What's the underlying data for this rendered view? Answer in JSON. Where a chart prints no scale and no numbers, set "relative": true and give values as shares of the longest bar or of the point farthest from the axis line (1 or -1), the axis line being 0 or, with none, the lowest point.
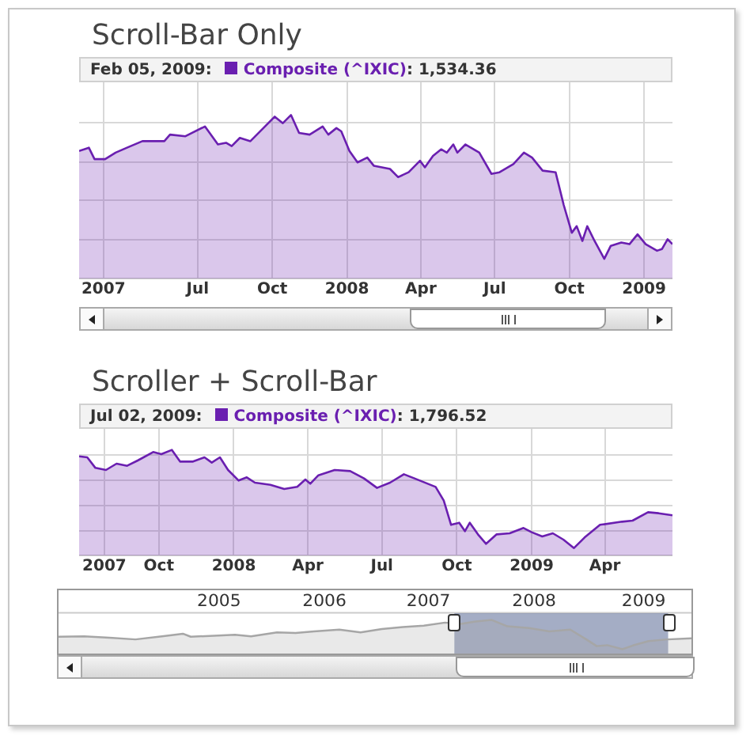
{
  "chart_data": [
    {
      "type": "area",
      "title": "Scroll-Bar Only",
      "relative": true,
      "grid": true,
      "legend": "top",
      "annotations": [
        "Feb 05, 2009:",
        ": 1,534.36"
      ],
      "xlim": [
        "2007-02-05",
        "2009-02-05"
      ],
      "xticks": [
        {
          "value": "2007-03-07",
          "label": "2007"
        },
        {
          "value": "2007-07-01",
          "label": "Jul"
        },
        {
          "value": "2007-10-01",
          "label": "Oct"
        },
        {
          "value": "2008-01-01",
          "label": "2008"
        },
        {
          "value": "2008-04-01",
          "label": "Apr"
        },
        {
          "value": "2008-07-01",
          "label": "Jul"
        },
        {
          "value": "2008-10-01",
          "label": "Oct"
        },
        {
          "value": "2009-01-01",
          "label": "2009"
        }
      ],
      "series": [
        {
          "name": "Composite (^IXIC)",
          "color": "#6a1fb0",
          "x": [
            "2007-02-05",
            "2007-02-17",
            "2007-02-24",
            "2007-03-09",
            "2007-03-22",
            "2007-04-05",
            "2007-04-24",
            "2007-05-21",
            "2007-05-28",
            "2007-06-16",
            "2007-07-10",
            "2007-07-26",
            "2007-08-05",
            "2007-08-12",
            "2007-08-22",
            "2007-09-04",
            "2007-09-20",
            "2007-10-04",
            "2007-10-14",
            "2007-10-24",
            "2007-11-03",
            "2007-11-16",
            "2007-12-02",
            "2007-12-09",
            "2007-12-19",
            "2007-12-25",
            "2008-01-04",
            "2008-01-14",
            "2008-01-26",
            "2008-02-03",
            "2008-02-23",
            "2008-03-04",
            "2008-03-17",
            "2008-03-31",
            "2008-04-06",
            "2008-04-16",
            "2008-04-26",
            "2008-05-03",
            "2008-05-11",
            "2008-05-16",
            "2008-05-26",
            "2008-06-12",
            "2008-06-27",
            "2008-07-07",
            "2008-07-24",
            "2008-08-06",
            "2008-08-16",
            "2008-08-29",
            "2008-09-14",
            "2008-09-24",
            "2008-10-04",
            "2008-10-10",
            "2008-10-17",
            "2008-10-23",
            "2008-11-01",
            "2008-11-13",
            "2008-11-21",
            "2008-12-04",
            "2008-12-14",
            "2008-12-24",
            "2009-01-03",
            "2009-01-17",
            "2009-01-23",
            "2009-01-30",
            "2009-02-05"
          ],
          "values": [
            0.78,
            0.8,
            0.73,
            0.73,
            0.77,
            0.8,
            0.84,
            0.84,
            0.88,
            0.87,
            0.93,
            0.82,
            0.83,
            0.81,
            0.86,
            0.84,
            0.92,
            0.99,
            0.95,
            1.0,
            0.89,
            0.88,
            0.93,
            0.88,
            0.92,
            0.9,
            0.78,
            0.71,
            0.74,
            0.69,
            0.67,
            0.62,
            0.65,
            0.72,
            0.68,
            0.75,
            0.79,
            0.77,
            0.82,
            0.77,
            0.82,
            0.77,
            0.64,
            0.65,
            0.7,
            0.77,
            0.74,
            0.66,
            0.65,
            0.45,
            0.28,
            0.32,
            0.23,
            0.32,
            0.23,
            0.12,
            0.2,
            0.22,
            0.21,
            0.27,
            0.21,
            0.17,
            0.18,
            0.24,
            0.21
          ]
        }
      ]
    },
    {
      "type": "area",
      "title": "Scroller + Scroll-Bar",
      "relative": true,
      "grid": true,
      "legend": "top",
      "annotations": [
        "Jul 02, 2009:",
        ": 1,796.52"
      ],
      "xlim": [
        "2007-06-25",
        "2009-06-23"
      ],
      "xticks": [
        {
          "value": "2007-07-26",
          "label": "2007"
        },
        {
          "value": "2007-10-01",
          "label": "Oct"
        },
        {
          "value": "2008-01-01",
          "label": "2008"
        },
        {
          "value": "2008-04-01",
          "label": "Apr"
        },
        {
          "value": "2008-07-01",
          "label": "Jul"
        },
        {
          "value": "2008-10-01",
          "label": "Oct"
        },
        {
          "value": "2009-01-01",
          "label": "2009"
        },
        {
          "value": "2009-04-01",
          "label": "Apr"
        }
      ],
      "series": [
        {
          "name": "Composite (^IXIC)",
          "color": "#6a1fb0",
          "x": [
            "2007-06-25",
            "2007-07-05",
            "2007-07-15",
            "2007-07-28",
            "2007-08-10",
            "2007-08-23",
            "2007-09-05",
            "2007-09-24",
            "2007-10-04",
            "2007-10-17",
            "2007-10-27",
            "2007-11-12",
            "2007-11-26",
            "2007-12-05",
            "2007-12-15",
            "2007-12-25",
            "2008-01-07",
            "2008-01-17",
            "2008-01-27",
            "2008-02-15",
            "2008-03-03",
            "2008-03-19",
            "2008-03-29",
            "2008-04-04",
            "2008-04-14",
            "2008-05-04",
            "2008-05-23",
            "2008-06-09",
            "2008-06-25",
            "2008-07-11",
            "2008-07-28",
            "2008-08-10",
            "2008-09-05",
            "2008-09-15",
            "2008-09-24",
            "2008-10-04",
            "2008-10-11",
            "2008-10-17",
            "2008-10-27",
            "2008-11-06",
            "2008-11-19",
            "2008-12-05",
            "2008-12-22",
            "2009-01-01",
            "2009-01-14",
            "2009-01-27",
            "2009-02-09",
            "2009-02-22",
            "2009-03-07",
            "2009-03-26",
            "2009-04-22",
            "2009-05-05",
            "2009-05-24",
            "2009-06-06",
            "2009-06-23"
          ],
          "values": [
            0.94,
            0.93,
            0.83,
            0.81,
            0.87,
            0.85,
            0.9,
            0.98,
            0.96,
            1.0,
            0.89,
            0.89,
            0.93,
            0.88,
            0.93,
            0.81,
            0.71,
            0.74,
            0.69,
            0.67,
            0.63,
            0.65,
            0.72,
            0.68,
            0.76,
            0.81,
            0.8,
            0.73,
            0.64,
            0.69,
            0.77,
            0.73,
            0.65,
            0.52,
            0.29,
            0.31,
            0.23,
            0.31,
            0.2,
            0.11,
            0.2,
            0.21,
            0.26,
            0.22,
            0.18,
            0.21,
            0.15,
            0.07,
            0.17,
            0.29,
            0.32,
            0.33,
            0.41,
            0.4,
            0.38
          ]
        }
      ]
    },
    {
      "type": "area",
      "relative": true,
      "xlim": [
        "2003-10-05",
        "2009-09-16"
      ],
      "xticks": [
        {
          "value": "2005-04-08",
          "label": "2005"
        },
        {
          "value": "2006-04-05",
          "label": "2006"
        },
        {
          "value": "2007-03-28",
          "label": "2007"
        },
        {
          "value": "2008-03-25",
          "label": "2008"
        },
        {
          "value": "2009-04-05",
          "label": "2009"
        }
      ],
      "bands": [
        {
          "axis": "x",
          "from": "2007-06-25",
          "to": "2009-06-28",
          "color": "#5a6a96"
        }
      ],
      "series": [
        {
          "color": "#a6a6a6",
          "x": [
            "2003-10-05",
            "2004-01-01",
            "2004-03-28",
            "2004-06-25",
            "2004-09-24",
            "2004-12-05",
            "2005-01-01",
            "2005-03-22",
            "2005-06-02",
            "2005-07-27",
            "2005-10-24",
            "2005-12-27",
            "2006-02-28",
            "2006-05-26",
            "2006-08-07",
            "2006-10-19",
            "2006-12-30",
            "2007-03-12",
            "2007-05-24",
            "2007-07-17",
            "2007-09-06",
            "2007-10-30",
            "2007-12-24",
            "2008-03-07",
            "2008-05-16",
            "2008-07-27",
            "2008-09-20",
            "2008-10-26",
            "2008-12-01",
            "2009-01-22",
            "2009-02-27",
            "2009-04-22",
            "2009-06-25",
            "2009-09-16"
          ],
          "values": [
            0.5,
            0.51,
            0.47,
            0.42,
            0.51,
            0.59,
            0.5,
            0.53,
            0.56,
            0.51,
            0.63,
            0.61,
            0.66,
            0.71,
            0.63,
            0.73,
            0.79,
            0.83,
            0.92,
            0.88,
            0.95,
            1.0,
            0.81,
            0.76,
            0.66,
            0.71,
            0.42,
            0.22,
            0.25,
            0.13,
            0.24,
            0.37,
            0.42,
            0.45
          ]
        }
      ]
    }
  ]
}
